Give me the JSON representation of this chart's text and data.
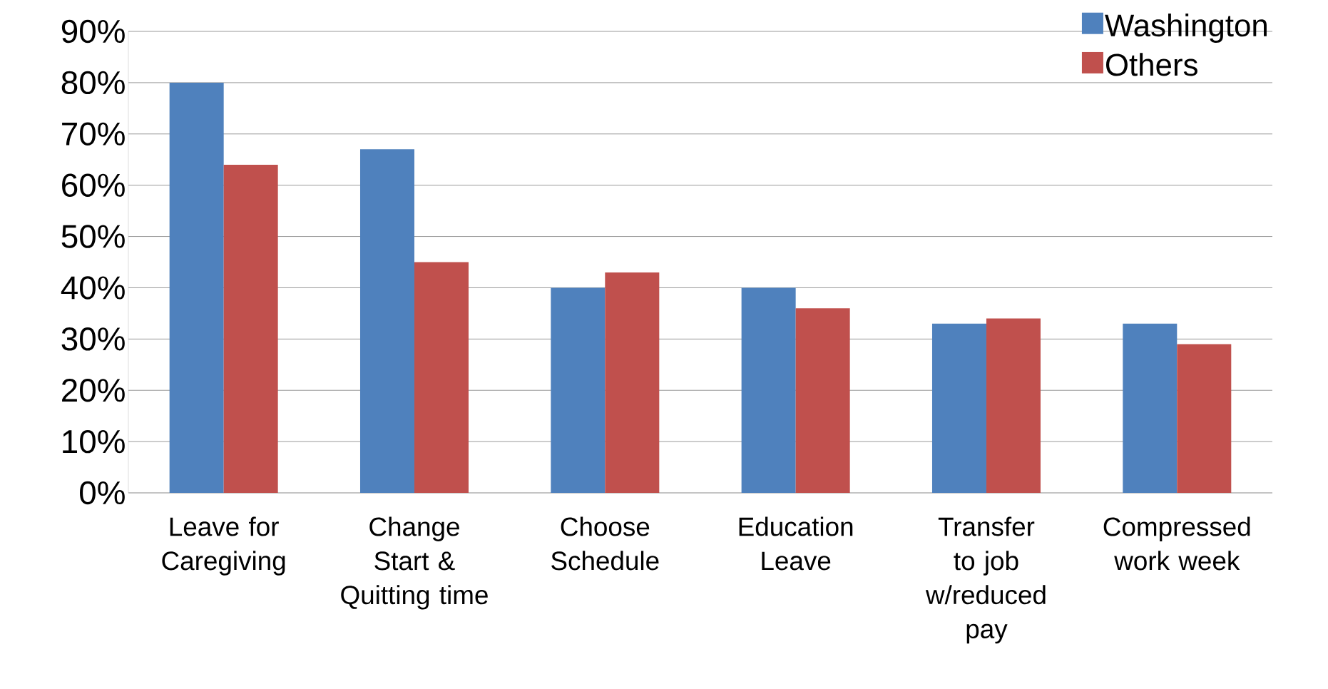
{
  "chart_data": {
    "type": "bar",
    "categories": [
      "Leave for Caregiving",
      "Change Start & Quitting time",
      "Choose Schedule",
      "Education Leave",
      "Transfer to job w/reduced pay",
      "Compressed work week"
    ],
    "series": [
      {
        "name": "Washington",
        "color": "#4f81bd",
        "values": [
          80,
          67,
          40,
          40,
          33,
          33
        ]
      },
      {
        "name": "Others",
        "color": "#c0504d",
        "values": [
          64,
          45,
          43,
          36,
          34,
          29
        ]
      }
    ],
    "ylim": [
      0,
      90
    ],
    "yticks": [
      {
        "value": 0,
        "label": "0%"
      },
      {
        "value": 10,
        "label": "10%"
      },
      {
        "value": 20,
        "label": "20%"
      },
      {
        "value": 30,
        "label": "30%"
      },
      {
        "value": 40,
        "label": "40%"
      },
      {
        "value": 50,
        "label": "50%"
      },
      {
        "value": 60,
        "label": "60%"
      },
      {
        "value": 70,
        "label": "70%"
      },
      {
        "value": 80,
        "label": "80%"
      },
      {
        "value": 90,
        "label": "90%"
      }
    ],
    "grid": "y",
    "legend": "top right"
  }
}
